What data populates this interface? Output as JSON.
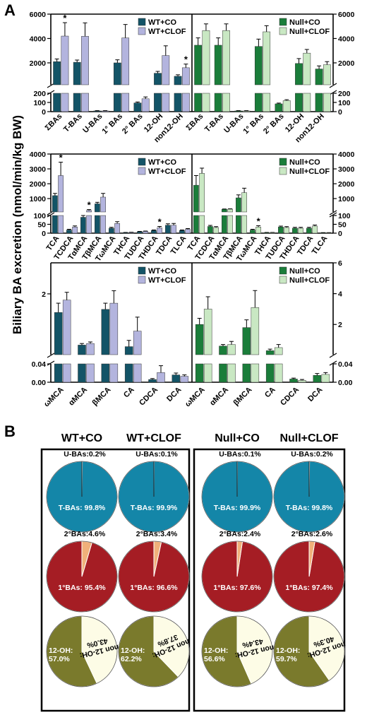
{
  "panel_labels": {
    "a": "A",
    "b": "B"
  },
  "y_axis_label": "Biliary BA excretion (nmol/min/kg BW)",
  "colors": {
    "wt_co": "#135467",
    "wt_clof": "#b3b4de",
    "null_co": "#1a7d3a",
    "null_clof": "#c9e8c3",
    "t_bas": "#1486a8",
    "primary": "#a51d24",
    "secondary": "#f0b07a",
    "oh12": "#7a7a2c",
    "non12": "#fdfce6",
    "slice_edge": "#ffffff"
  },
  "chart_data": [
    {
      "type": "bar",
      "panel": "A-top",
      "categories": [
        "ΣBAs",
        "T-BAs",
        "U-BAs",
        "1° BAs",
        "2° BAs",
        "12-OH",
        "non12-OH"
      ],
      "y_ticks_upper": [
        "6000",
        "4000",
        "2000"
      ],
      "y_ticks_lower": [
        "200",
        "100",
        "0"
      ],
      "groups": [
        {
          "legend": [
            "WT+CO",
            "WT+CLOF"
          ],
          "series": [
            {
              "name": "WT+CO",
              "values": [
                2100,
                2050,
                8,
                2000,
                95,
                1150,
                900
              ],
              "errors": [
                220,
                180,
                3,
                250,
                10,
                150,
                120
              ]
            },
            {
              "name": "WT+CLOF",
              "values": [
                4200,
                4180,
                8,
                4050,
                140,
                2600,
                1600
              ],
              "errors": [
                1100,
                1100,
                3,
                1100,
                20,
                800,
                300
              ]
            }
          ],
          "stars": [
            0,
            6
          ]
        },
        {
          "legend": [
            "Null+CO",
            "Null+CLOF"
          ],
          "series": [
            {
              "name": "Null+CO",
              "values": [
                3450,
                3450,
                8,
                3350,
                85,
                1950,
                1500
              ],
              "errors": [
                600,
                600,
                3,
                600,
                8,
                400,
                250
              ]
            },
            {
              "name": "Null+CLOF",
              "values": [
                4650,
                4650,
                8,
                4550,
                120,
                2800,
                1850
              ],
              "errors": [
                550,
                550,
                3,
                500,
                10,
                300,
                250
              ]
            }
          ],
          "stars": []
        }
      ]
    },
    {
      "type": "bar",
      "panel": "A-middle",
      "categories": [
        "TCA",
        "TCDCA",
        "TαMCA",
        "TβMCA",
        "TωMCA",
        "THCA",
        "TUDCA",
        "THDCA",
        "TDCA",
        "TLCA"
      ],
      "y_ticks_upper": [
        "4000",
        "3000",
        "2000",
        "1000"
      ],
      "y_ticks_lower": [
        "100",
        "50",
        "0"
      ],
      "groups": [
        {
          "legend": [
            "WT+CO",
            "WT+CLOF"
          ],
          "series": [
            {
              "name": "WT+CO",
              "values": [
                1200,
                18,
                90,
                650,
                28,
                3,
                8,
                15,
                45,
                15
              ],
              "errors": [
                150,
                4,
                10,
                100,
                5,
                1,
                2,
                3,
                8,
                3
              ]
            },
            {
              "name": "WT+CLOF",
              "values": [
                2550,
                35,
                200,
                1100,
                55,
                4,
                10,
                30,
                45,
                22
              ],
              "errors": [
                900,
                6,
                60,
                250,
                10,
                1,
                2,
                8,
                10,
                4
              ]
            }
          ],
          "stars": [
            0,
            2,
            7
          ]
        },
        {
          "legend": [
            "Null+CO",
            "Null+CLOF"
          ],
          "series": [
            {
              "name": "Null+CO",
              "values": [
                1900,
                38,
                280,
                1050,
                18,
                3,
                35,
                28,
                28,
                2
              ],
              "errors": [
                650,
                6,
                20,
                200,
                4,
                1,
                5,
                5,
                5,
                1
              ]
            },
            {
              "name": "Null+CLOF",
              "values": [
                2700,
                32,
                290,
                1400,
                35,
                3,
                32,
                28,
                40,
                2
              ],
              "errors": [
                350,
                5,
                20,
                300,
                7,
                1,
                5,
                5,
                6,
                1
              ]
            }
          ],
          "stars": [
            4
          ]
        }
      ]
    },
    {
      "type": "bar",
      "panel": "A-bottom",
      "categories": [
        "ωMCA",
        "αMCA",
        "βMCA",
        "CA",
        "CDCA",
        "DCA"
      ],
      "y_ticks_upper_left": [
        "2"
      ],
      "y_ticks_upper_right": [
        "6",
        "4",
        "2"
      ],
      "y_ticks_lower": [
        "0.04",
        "0.00"
      ],
      "groups": [
        {
          "legend": [
            "WT+CO",
            "WT+CLOF"
          ],
          "series": [
            {
              "name": "WT+CO",
              "values": [
                1.4,
                0.35,
                1.5,
                0.3,
                0.006,
                0.016
              ],
              "errors": [
                0.3,
                0.05,
                0.2,
                0.2,
                0.002,
                0.004
              ]
            },
            {
              "name": "WT+CLOF",
              "values": [
                1.8,
                0.4,
                1.7,
                0.8,
                0.021,
                0.013
              ],
              "errors": [
                0.25,
                0.05,
                0.4,
                0.45,
                0.015,
                0.003
              ]
            }
          ],
          "stars": []
        },
        {
          "legend": [
            "Null+CO",
            "Null+CLOF"
          ],
          "series": [
            {
              "name": "Null+CO",
              "values": [
                2.0,
                0.6,
                1.8,
                0.3,
                0.007,
                0.015
              ],
              "errors": [
                0.4,
                0.1,
                0.5,
                0.1,
                0.002,
                0.004
              ]
            },
            {
              "name": "Null+CLOF",
              "values": [
                3.0,
                0.7,
                3.1,
                0.5,
                0.004,
                0.017
              ],
              "errors": [
                0.8,
                0.2,
                1.1,
                0.2,
                0.002,
                0.004
              ]
            }
          ],
          "stars": []
        }
      ]
    },
    {
      "type": "pie",
      "panel": "B",
      "column_titles": [
        "WT+CO",
        "WT+CLOF",
        "Null+CO",
        "Null+CLOF"
      ],
      "rows": [
        {
          "labels": [
            "U-BAs:",
            "T-BAs:"
          ],
          "slices": [
            [
              0.2,
              99.8
            ],
            [
              0.1,
              99.9
            ],
            [
              0.1,
              99.9
            ],
            [
              0.2,
              99.8
            ]
          ],
          "text": [
            [
              "U-BAs:0.2%",
              "T-BAs: 99.8%"
            ],
            [
              "U-BAs:0.1%",
              "T-BAs: 99.9%"
            ],
            [
              "U-BAs:0.1%",
              "T-BAs: 99.9%"
            ],
            [
              "U-BAs:0.2%",
              "T-BAs: 99.8%"
            ]
          ]
        },
        {
          "labels": [
            "2°BAs:",
            "1°BAs:"
          ],
          "slices": [
            [
              4.6,
              95.4
            ],
            [
              3.4,
              96.6
            ],
            [
              2.4,
              97.6
            ],
            [
              2.6,
              97.4
            ]
          ],
          "text": [
            [
              "2°BAs:4.6%",
              "1°BAs: 95.4%"
            ],
            [
              "2°BAs:3.4%",
              "1°BAs: 96.6%"
            ],
            [
              "2°BAs:2.4%",
              "1°BAs: 97.6%"
            ],
            [
              "2°BAs:2.6%",
              "1°BAs: 97.4%"
            ]
          ]
        },
        {
          "labels": [
            "non 12-OH:",
            "12-OH:"
          ],
          "slices": [
            [
              43.0,
              57.0
            ],
            [
              37.8,
              62.2
            ],
            [
              43.4,
              56.6
            ],
            [
              40.3,
              59.7
            ]
          ],
          "text": [
            [
              "non 12-OH: 43.0%",
              "12-OH: 57.0%"
            ],
            [
              "non 12-OH: 37.8%",
              "12-OH: 62.2%"
            ],
            [
              "non 12-OH: 43.4%",
              "12-OH: 56.6%"
            ],
            [
              "non 12-OH: 40.3%",
              "12-OH: 59.7%"
            ]
          ]
        }
      ]
    }
  ]
}
